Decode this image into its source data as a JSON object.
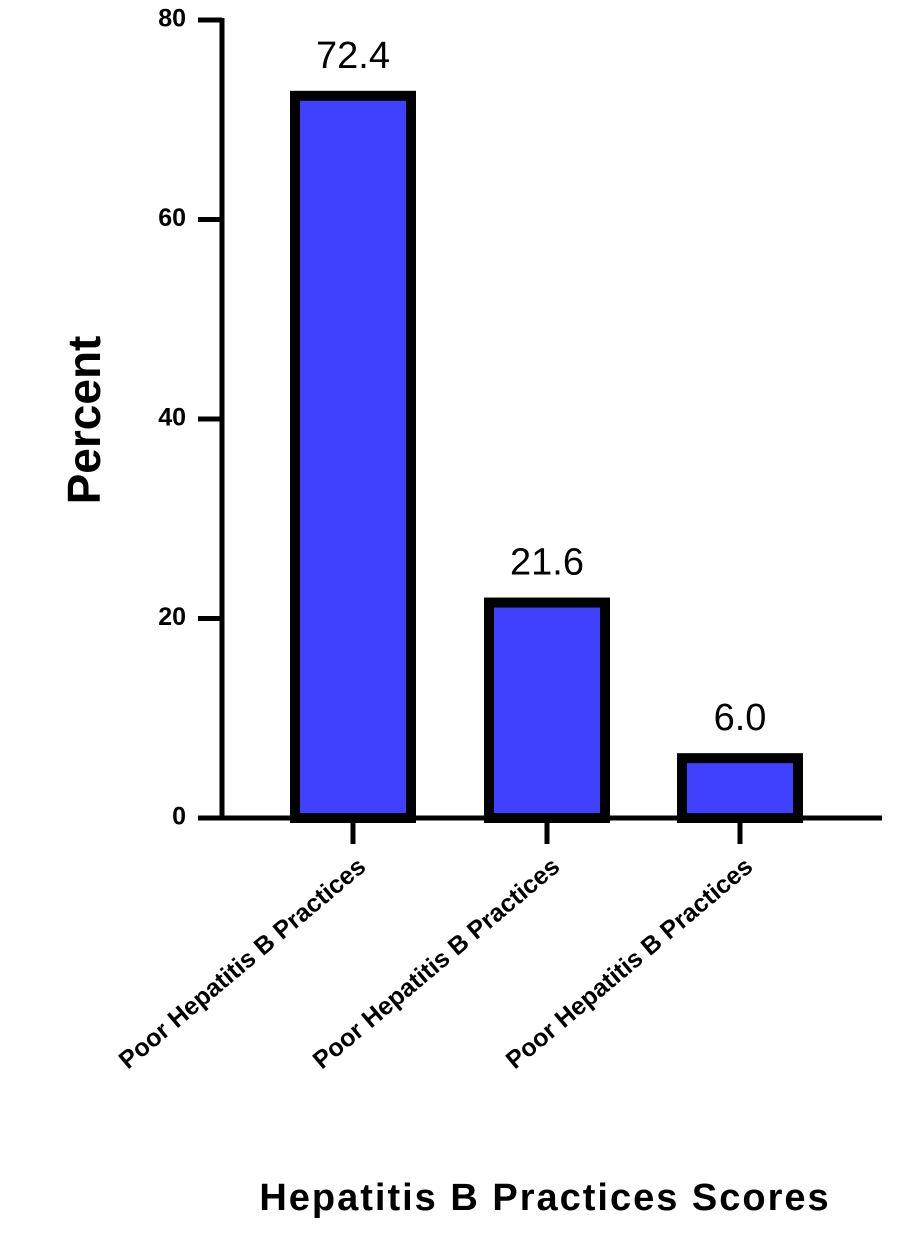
{
  "chart_data": {
    "type": "bar",
    "x_label": "Hepatitis B Practices Scores",
    "y_label": "Percent",
    "categories": [
      "Poor Hepatitis B Practices",
      "Poor Hepatitis B Practices",
      "Poor Hepatitis B Practices"
    ],
    "values": [
      72.4,
      21.6,
      6.0
    ],
    "value_labels": [
      "72.4",
      "21.6",
      "6.0"
    ],
    "color": "#4040ff",
    "ylim": [
      0,
      80
    ],
    "yticks": [
      0,
      20,
      40,
      60,
      80
    ],
    "grid": false
  }
}
